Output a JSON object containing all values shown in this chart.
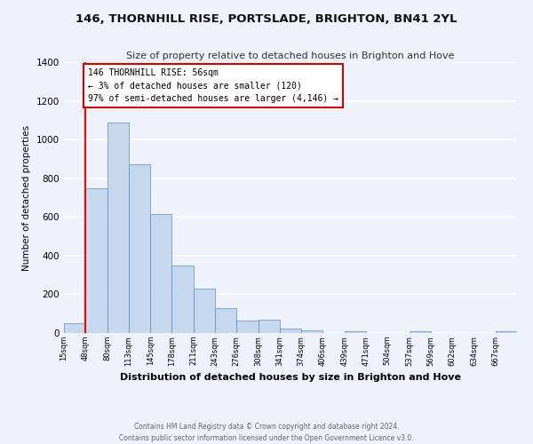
{
  "title": "146, THORNHILL RISE, PORTSLADE, BRIGHTON, BN41 2YL",
  "subtitle": "Size of property relative to detached houses in Brighton and Hove",
  "bar_values": [
    50,
    750,
    1090,
    870,
    615,
    350,
    228,
    130,
    65,
    70,
    25,
    15,
    0,
    10,
    0,
    0,
    10,
    0,
    0,
    0,
    10
  ],
  "categories": [
    "15sqm",
    "48sqm",
    "80sqm",
    "113sqm",
    "145sqm",
    "178sqm",
    "211sqm",
    "243sqm",
    "276sqm",
    "308sqm",
    "341sqm",
    "374sqm",
    "406sqm",
    "439sqm",
    "471sqm",
    "504sqm",
    "537sqm",
    "569sqm",
    "602sqm",
    "634sqm",
    "667sqm"
  ],
  "bar_color": "#c5d8ee",
  "bar_edge_color": "#5b8fc9",
  "annotation_text": "146 THORNHILL RISE: 56sqm\n← 3% of detached houses are smaller (120)\n97% of semi-detached houses are larger (4,146) →",
  "annotation_box_color": "#cc0000",
  "vertical_line_x": 1,
  "ylabel": "Number of detached properties",
  "xlabel": "Distribution of detached houses by size in Brighton and Hove",
  "footer1": "Contains HM Land Registry data © Crown copyright and database right 2024.",
  "footer2": "Contains public sector information licensed under the Open Government Licence v3.0.",
  "ylim": [
    0,
    1400
  ],
  "yticks": [
    0,
    200,
    400,
    600,
    800,
    1000,
    1200,
    1400
  ],
  "background_color": "#eef2fa",
  "grid_color": "#ffffff"
}
